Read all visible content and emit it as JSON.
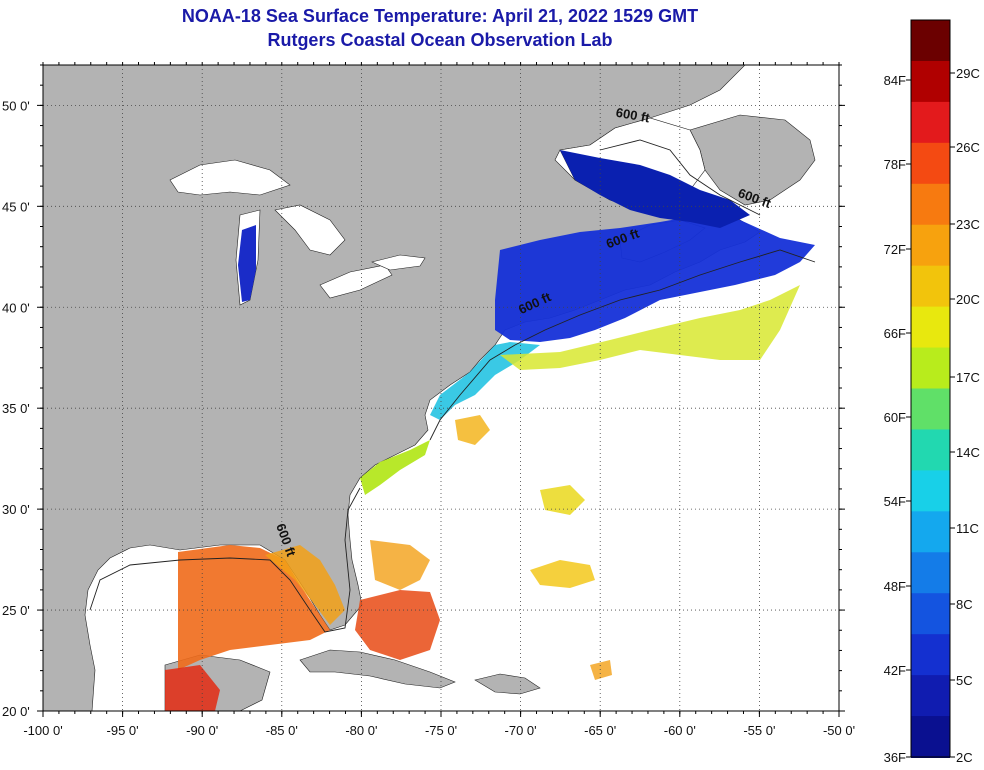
{
  "header": {
    "title": "NOAA-18 Sea Surface Temperature:  April 21, 2022 1529 GMT",
    "subtitle": "Rutgers Coastal Ocean Observation Lab"
  },
  "map": {
    "lon_range": [
      -100,
      -50
    ],
    "lat_range": [
      20,
      52
    ],
    "lon_ticks": [
      -100,
      -95,
      -90,
      -85,
      -80,
      -75,
      -70,
      -65,
      -60,
      -55,
      -50
    ],
    "lat_ticks": [
      20,
      25,
      30,
      35,
      40,
      45,
      50
    ],
    "lon_tick_labels": [
      "-100 0'",
      "-95 0'",
      "-90 0'",
      "-85 0'",
      "-80 0'",
      "-75 0'",
      "-70 0'",
      "-65 0'",
      "-60 0'",
      "-55 0'",
      "-50 0'"
    ],
    "lat_tick_labels": [
      "20 0'",
      "25 0'",
      "30 0'",
      "35 0'",
      "40 0'",
      "45 0'",
      "50 0'"
    ],
    "grid": "dotted",
    "land_color": "#b3b3b3",
    "contour_label": "600 ft",
    "contour_labels": [
      {
        "text": "600 ft",
        "lon": -63,
        "lat": 49.3,
        "rotate": 10
      },
      {
        "text": "600 ft",
        "lon": -55.4,
        "lat": 45.2,
        "rotate": 20
      },
      {
        "text": "600 ft",
        "lon": -63.5,
        "lat": 43.2,
        "rotate": -20
      },
      {
        "text": "600 ft",
        "lon": -69,
        "lat": 40.0,
        "rotate": -25
      },
      {
        "text": "600 ft",
        "lon": -85,
        "lat": 28.4,
        "rotate": 70
      }
    ]
  },
  "colorbar": {
    "fahrenheit_labels": [
      "84F",
      "78F",
      "72F",
      "66F",
      "60F",
      "54F",
      "48F",
      "42F",
      "36F"
    ],
    "celsius_labels": [
      "29C",
      "26C",
      "23C",
      "20C",
      "17C",
      "14C",
      "11C",
      "8C",
      "5C",
      "2C"
    ],
    "colors": [
      "#6b0000",
      "#b00000",
      "#e31a1c",
      "#f44a12",
      "#f77a10",
      "#f7a20e",
      "#f2c40c",
      "#e8e80e",
      "#b8ec1c",
      "#60e068",
      "#22d8b0",
      "#18d0e8",
      "#14a8ee",
      "#147ce8",
      "#1454e0",
      "#1430d0",
      "#101cb0",
      "#0a1090"
    ]
  }
}
